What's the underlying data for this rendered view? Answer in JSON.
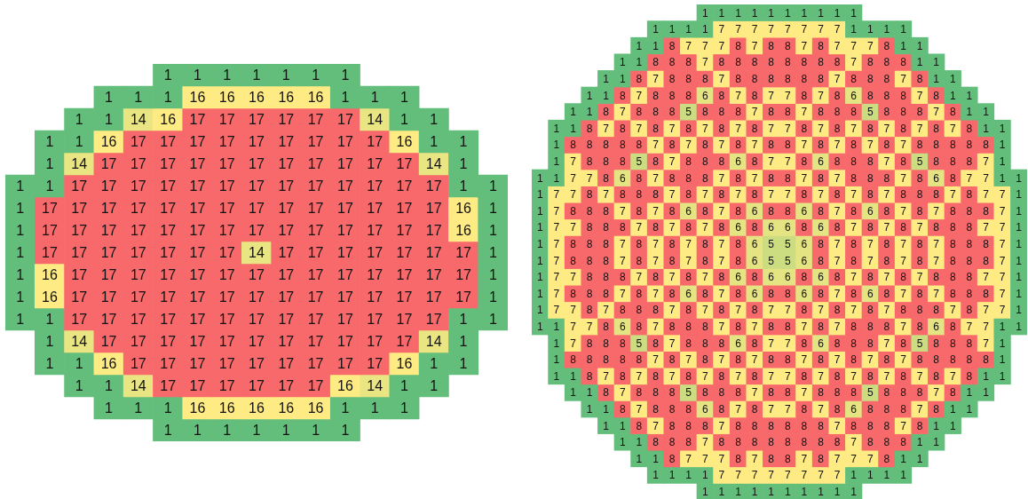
{
  "chart_data": [
    {
      "type": "heatmap",
      "data_labels": true,
      "categories": [
        null,
        null,
        null,
        null,
        null,
        null,
        null,
        null,
        null,
        null,
        null,
        null,
        null,
        null,
        null,
        null,
        null
      ],
      "y_categories": [
        null,
        null,
        null,
        null,
        null,
        null,
        null,
        null,
        null,
        null,
        null,
        null,
        null,
        null,
        null,
        null,
        null
      ],
      "cells": [
        [
          null,
          null,
          null,
          null,
          null,
          1,
          1,
          1,
          1,
          1,
          1,
          1,
          null,
          null,
          null,
          null,
          null
        ],
        [
          null,
          null,
          null,
          1,
          1,
          1,
          16,
          16,
          16,
          16,
          16,
          1,
          1,
          1,
          null,
          null,
          null
        ],
        [
          null,
          null,
          1,
          1,
          14,
          16,
          17,
          17,
          17,
          17,
          17,
          17,
          14,
          1,
          1,
          null,
          null
        ],
        [
          null,
          1,
          1,
          16,
          17,
          17,
          17,
          17,
          17,
          17,
          17,
          17,
          17,
          16,
          1,
          1,
          null
        ],
        [
          null,
          1,
          14,
          17,
          17,
          17,
          17,
          17,
          17,
          17,
          17,
          17,
          17,
          17,
          14,
          1,
          null
        ],
        [
          1,
          1,
          17,
          17,
          17,
          17,
          17,
          17,
          17,
          17,
          17,
          17,
          17,
          17,
          17,
          1,
          1
        ],
        [
          1,
          17,
          17,
          17,
          17,
          17,
          17,
          17,
          17,
          17,
          17,
          17,
          17,
          17,
          17,
          16,
          1
        ],
        [
          1,
          17,
          17,
          17,
          17,
          17,
          17,
          17,
          17,
          17,
          17,
          17,
          17,
          17,
          17,
          16,
          1
        ],
        [
          1,
          17,
          17,
          17,
          17,
          17,
          17,
          17,
          14,
          17,
          17,
          17,
          17,
          17,
          17,
          17,
          1
        ],
        [
          1,
          16,
          17,
          17,
          17,
          17,
          17,
          17,
          17,
          17,
          17,
          17,
          17,
          17,
          17,
          17,
          1
        ],
        [
          1,
          16,
          17,
          17,
          17,
          17,
          17,
          17,
          17,
          17,
          17,
          17,
          17,
          17,
          17,
          17,
          1
        ],
        [
          1,
          1,
          17,
          17,
          17,
          17,
          17,
          17,
          17,
          17,
          17,
          17,
          17,
          17,
          17,
          1,
          1
        ],
        [
          null,
          1,
          14,
          17,
          17,
          17,
          17,
          17,
          17,
          17,
          17,
          17,
          17,
          17,
          14,
          1,
          null
        ],
        [
          null,
          1,
          1,
          16,
          17,
          17,
          17,
          17,
          17,
          17,
          17,
          17,
          17,
          16,
          1,
          1,
          null
        ],
        [
          null,
          null,
          1,
          1,
          14,
          17,
          17,
          17,
          17,
          17,
          17,
          16,
          14,
          1,
          1,
          null,
          null
        ],
        [
          null,
          null,
          null,
          1,
          1,
          1,
          16,
          16,
          16,
          16,
          16,
          1,
          1,
          1,
          null,
          null,
          null
        ],
        [
          null,
          null,
          null,
          null,
          null,
          1,
          1,
          1,
          1,
          1,
          1,
          1,
          null,
          null,
          null,
          null,
          null
        ]
      ]
    },
    {
      "type": "heatmap",
      "data_labels": true,
      "categories": [
        null,
        null,
        null,
        null,
        null,
        null,
        null,
        null,
        null,
        null,
        null,
        null,
        null,
        null,
        null,
        null,
        null,
        null,
        null,
        null,
        null,
        null,
        null,
        null,
        null,
        null,
        null,
        null,
        null,
        null
      ],
      "y_categories": [
        null,
        null,
        null,
        null,
        null,
        null,
        null,
        null,
        null,
        null,
        null,
        null,
        null,
        null,
        null,
        null,
        null,
        null,
        null,
        null,
        null,
        null,
        null,
        null,
        null,
        null,
        null,
        null,
        null,
        null
      ],
      "cells": [
        [
          null,
          null,
          null,
          null,
          null,
          null,
          null,
          null,
          null,
          null,
          1,
          1,
          1,
          1,
          1,
          1,
          1,
          1,
          1,
          1,
          null,
          null,
          null,
          null,
          null,
          null,
          null,
          null,
          null,
          null
        ],
        [
          null,
          null,
          null,
          null,
          null,
          null,
          null,
          1,
          1,
          1,
          1,
          7,
          7,
          7,
          7,
          7,
          7,
          7,
          7,
          1,
          1,
          1,
          1,
          null,
          null,
          null,
          null,
          null,
          null,
          null
        ],
        [
          null,
          null,
          null,
          null,
          null,
          null,
          1,
          1,
          8,
          7,
          7,
          7,
          8,
          7,
          8,
          8,
          7,
          8,
          7,
          7,
          7,
          8,
          1,
          1,
          null,
          null,
          null,
          null,
          null,
          null
        ],
        [
          null,
          null,
          null,
          null,
          null,
          1,
          1,
          8,
          8,
          8,
          7,
          8,
          8,
          8,
          8,
          8,
          8,
          8,
          8,
          7,
          8,
          8,
          8,
          1,
          1,
          null,
          null,
          null,
          null,
          null
        ],
        [
          null,
          null,
          null,
          null,
          1,
          1,
          8,
          7,
          8,
          8,
          8,
          7,
          8,
          8,
          8,
          8,
          8,
          8,
          7,
          8,
          8,
          8,
          7,
          8,
          1,
          1,
          null,
          null,
          null,
          null
        ],
        [
          null,
          null,
          null,
          1,
          1,
          8,
          7,
          8,
          8,
          8,
          6,
          8,
          7,
          8,
          7,
          7,
          8,
          7,
          8,
          6,
          8,
          8,
          8,
          7,
          8,
          1,
          1,
          null,
          null,
          null
        ],
        [
          null,
          null,
          1,
          1,
          8,
          7,
          8,
          8,
          8,
          5,
          8,
          8,
          8,
          7,
          8,
          8,
          7,
          8,
          8,
          8,
          5,
          8,
          8,
          8,
          7,
          8,
          1,
          1,
          null,
          null
        ],
        [
          null,
          1,
          1,
          8,
          7,
          8,
          7,
          8,
          7,
          8,
          7,
          8,
          7,
          8,
          7,
          7,
          8,
          7,
          8,
          7,
          8,
          7,
          8,
          7,
          8,
          7,
          8,
          1,
          1,
          null
        ],
        [
          null,
          1,
          8,
          8,
          8,
          8,
          8,
          7,
          8,
          7,
          8,
          7,
          8,
          7,
          8,
          8,
          7,
          8,
          7,
          8,
          7,
          8,
          7,
          8,
          8,
          8,
          8,
          8,
          1,
          null
        ],
        [
          null,
          1,
          7,
          8,
          8,
          8,
          5,
          8,
          7,
          8,
          8,
          8,
          6,
          8,
          7,
          7,
          8,
          6,
          8,
          8,
          8,
          7,
          8,
          5,
          8,
          8,
          8,
          7,
          1,
          null
        ],
        [
          1,
          1,
          7,
          7,
          8,
          6,
          8,
          7,
          8,
          8,
          8,
          7,
          8,
          7,
          8,
          8,
          7,
          8,
          7,
          8,
          8,
          8,
          7,
          8,
          6,
          8,
          7,
          7,
          1,
          1
        ],
        [
          1,
          7,
          7,
          8,
          7,
          8,
          8,
          8,
          7,
          8,
          7,
          8,
          7,
          8,
          7,
          7,
          8,
          7,
          8,
          7,
          8,
          7,
          8,
          8,
          8,
          7,
          8,
          7,
          7,
          1
        ],
        [
          1,
          7,
          8,
          8,
          8,
          7,
          8,
          7,
          8,
          6,
          8,
          7,
          8,
          6,
          8,
          8,
          6,
          8,
          7,
          8,
          6,
          8,
          7,
          8,
          7,
          8,
          8,
          8,
          7,
          1
        ],
        [
          1,
          7,
          7,
          8,
          8,
          8,
          7,
          8,
          7,
          8,
          7,
          8,
          6,
          8,
          6,
          6,
          8,
          6,
          8,
          7,
          8,
          7,
          8,
          7,
          8,
          8,
          8,
          7,
          7,
          1
        ],
        [
          1,
          7,
          8,
          8,
          8,
          7,
          8,
          7,
          8,
          7,
          8,
          7,
          8,
          6,
          5,
          5,
          6,
          8,
          7,
          8,
          7,
          8,
          7,
          8,
          7,
          8,
          8,
          8,
          7,
          1
        ],
        [
          1,
          7,
          8,
          8,
          8,
          7,
          8,
          7,
          8,
          7,
          8,
          7,
          8,
          6,
          5,
          5,
          6,
          8,
          7,
          8,
          7,
          8,
          7,
          8,
          7,
          8,
          8,
          8,
          7,
          1
        ],
        [
          1,
          7,
          7,
          8,
          8,
          8,
          7,
          8,
          7,
          8,
          7,
          8,
          6,
          8,
          6,
          6,
          8,
          6,
          8,
          7,
          8,
          7,
          8,
          7,
          8,
          8,
          8,
          7,
          7,
          1
        ],
        [
          1,
          7,
          8,
          8,
          8,
          7,
          8,
          7,
          8,
          6,
          8,
          7,
          8,
          6,
          8,
          8,
          6,
          8,
          7,
          8,
          6,
          8,
          7,
          8,
          7,
          8,
          8,
          8,
          7,
          1
        ],
        [
          1,
          7,
          7,
          8,
          7,
          8,
          8,
          8,
          7,
          8,
          7,
          8,
          7,
          8,
          7,
          7,
          8,
          7,
          8,
          7,
          8,
          7,
          8,
          8,
          8,
          7,
          8,
          7,
          7,
          1
        ],
        [
          1,
          1,
          7,
          7,
          8,
          6,
          8,
          7,
          8,
          8,
          8,
          7,
          8,
          7,
          8,
          8,
          7,
          8,
          7,
          8,
          8,
          8,
          7,
          8,
          6,
          8,
          7,
          7,
          1,
          1
        ],
        [
          null,
          1,
          7,
          8,
          8,
          8,
          5,
          8,
          7,
          8,
          8,
          8,
          6,
          8,
          7,
          7,
          8,
          6,
          8,
          8,
          8,
          7,
          8,
          5,
          8,
          8,
          8,
          7,
          1,
          null
        ],
        [
          null,
          1,
          8,
          8,
          8,
          8,
          8,
          7,
          8,
          7,
          8,
          7,
          8,
          7,
          8,
          8,
          7,
          8,
          7,
          8,
          7,
          8,
          7,
          8,
          8,
          8,
          8,
          8,
          1,
          null
        ],
        [
          null,
          1,
          1,
          8,
          7,
          8,
          7,
          8,
          7,
          8,
          7,
          8,
          7,
          8,
          7,
          7,
          8,
          7,
          8,
          7,
          8,
          7,
          8,
          7,
          8,
          7,
          8,
          1,
          1,
          null
        ],
        [
          null,
          null,
          1,
          1,
          8,
          7,
          8,
          8,
          8,
          5,
          8,
          8,
          8,
          7,
          8,
          8,
          7,
          8,
          8,
          8,
          5,
          8,
          8,
          8,
          7,
          8,
          1,
          1,
          null,
          null
        ],
        [
          null,
          null,
          null,
          1,
          1,
          8,
          7,
          8,
          8,
          8,
          6,
          8,
          7,
          8,
          7,
          7,
          8,
          7,
          8,
          6,
          8,
          8,
          8,
          7,
          8,
          1,
          1,
          null,
          null,
          null
        ],
        [
          null,
          null,
          null,
          null,
          1,
          1,
          8,
          7,
          8,
          8,
          8,
          7,
          8,
          8,
          8,
          8,
          8,
          8,
          7,
          8,
          8,
          8,
          7,
          8,
          1,
          1,
          null,
          null,
          null,
          null
        ],
        [
          null,
          null,
          null,
          null,
          null,
          1,
          1,
          8,
          8,
          8,
          7,
          8,
          8,
          8,
          8,
          8,
          8,
          8,
          8,
          7,
          8,
          8,
          8,
          1,
          1,
          null,
          null,
          null,
          null,
          null
        ],
        [
          null,
          null,
          null,
          null,
          null,
          null,
          1,
          1,
          8,
          7,
          7,
          7,
          8,
          7,
          8,
          8,
          7,
          8,
          7,
          7,
          7,
          8,
          1,
          1,
          null,
          null,
          null,
          null,
          null,
          null
        ],
        [
          null,
          null,
          null,
          null,
          null,
          null,
          null,
          1,
          1,
          1,
          1,
          7,
          7,
          7,
          7,
          7,
          7,
          7,
          7,
          1,
          1,
          1,
          1,
          null,
          null,
          null,
          null,
          null,
          null,
          null
        ],
        [
          null,
          null,
          null,
          null,
          null,
          null,
          null,
          null,
          null,
          null,
          1,
          1,
          1,
          1,
          1,
          1,
          1,
          1,
          1,
          1,
          null,
          null,
          null,
          null,
          null,
          null,
          null,
          null,
          null,
          null
        ]
      ]
    }
  ]
}
